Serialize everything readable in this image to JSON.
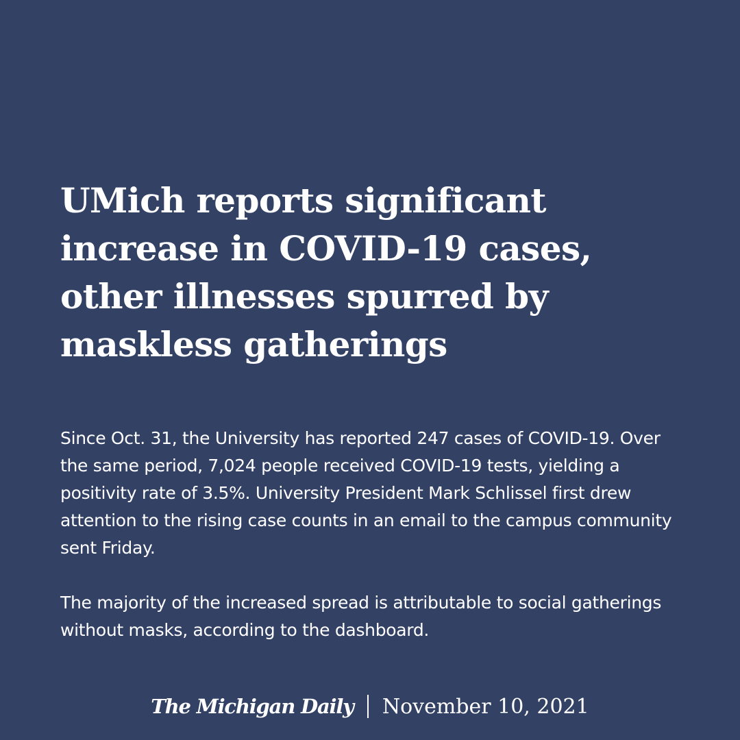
{
  "colors": {
    "background": "#334165",
    "text": "#ffffff"
  },
  "headline": {
    "lines": [
      "UMich reports significant",
      "increase in COVID-19 cases,",
      "other illnesses spurred by",
      "maskless gatherings"
    ]
  },
  "body": {
    "paragraphs": [
      "Since Oct. 31, the University has reported 247 cases of COVID-19. Over the same period, 7,024 people received COVID-19 tests, yielding a positivity rate of 3.5%. University President Mark Schlissel first drew attention to the rising case counts in an email to the campus community sent Friday.",
      "The majority of the increased spread is attributable to social gatherings without masks, according to the dashboard."
    ]
  },
  "footer": {
    "logo_text": "The Michigan Daily",
    "date": "November 10,  2021"
  }
}
